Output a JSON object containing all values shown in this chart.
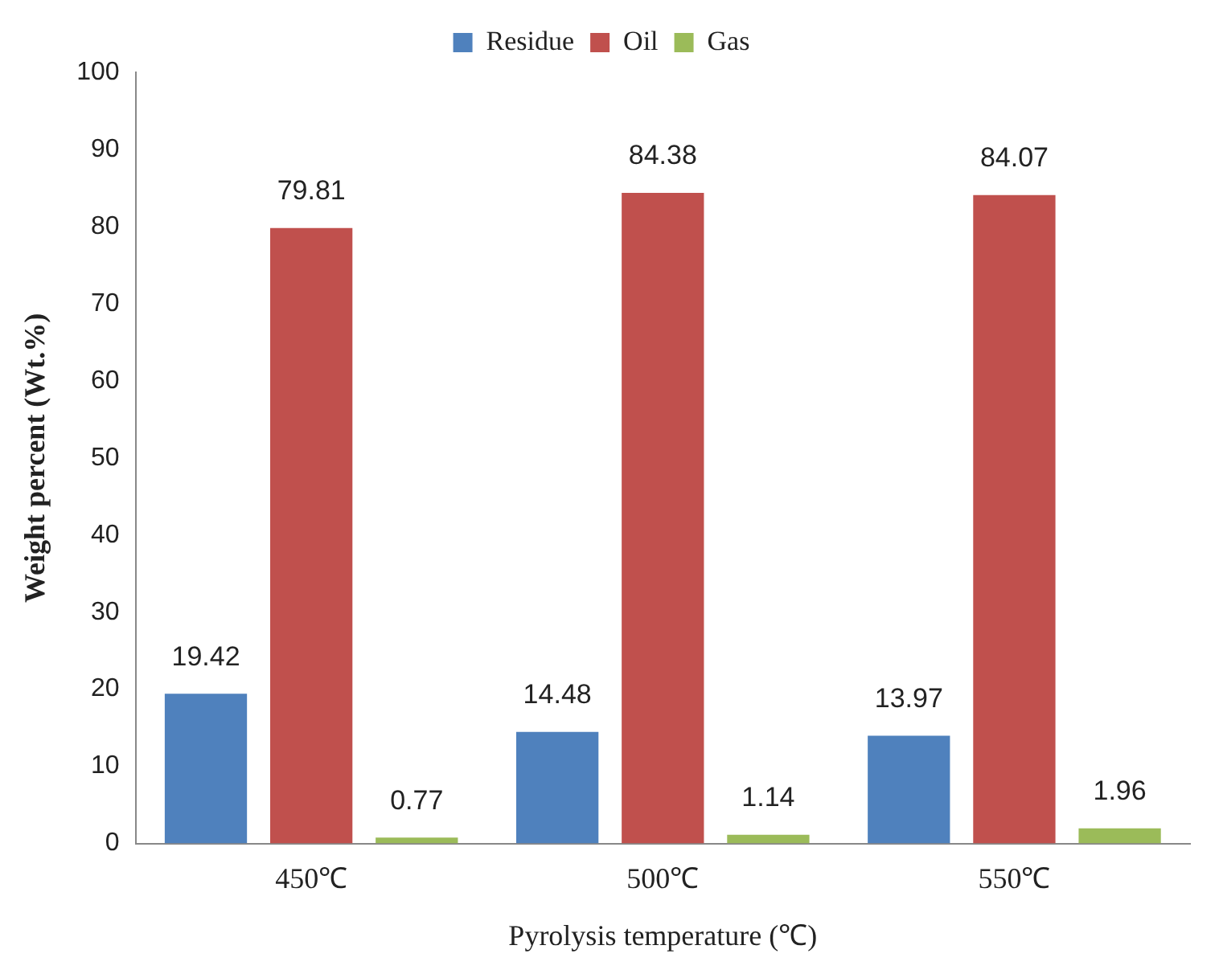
{
  "chart_data": {
    "type": "bar",
    "xlabel": "Pyrolysis temperature (℃)",
    "ylabel": "Weight percent (Wt.%)",
    "categories": [
      "450℃",
      "500℃",
      "550℃"
    ],
    "series": [
      {
        "name": "Residue",
        "color": "#4f81bd",
        "values": [
          19.42,
          14.48,
          13.97
        ]
      },
      {
        "name": "Oil",
        "color": "#c0504d",
        "values": [
          79.81,
          84.38,
          84.07
        ]
      },
      {
        "name": "Gas",
        "color": "#9bbb59",
        "values": [
          0.77,
          1.14,
          1.96
        ]
      }
    ],
    "ylim": [
      0,
      100
    ],
    "yticks": [
      0,
      10,
      20,
      30,
      40,
      50,
      60,
      70,
      80,
      90,
      100
    ],
    "grid": false,
    "legend": "top",
    "data_labels": true
  }
}
